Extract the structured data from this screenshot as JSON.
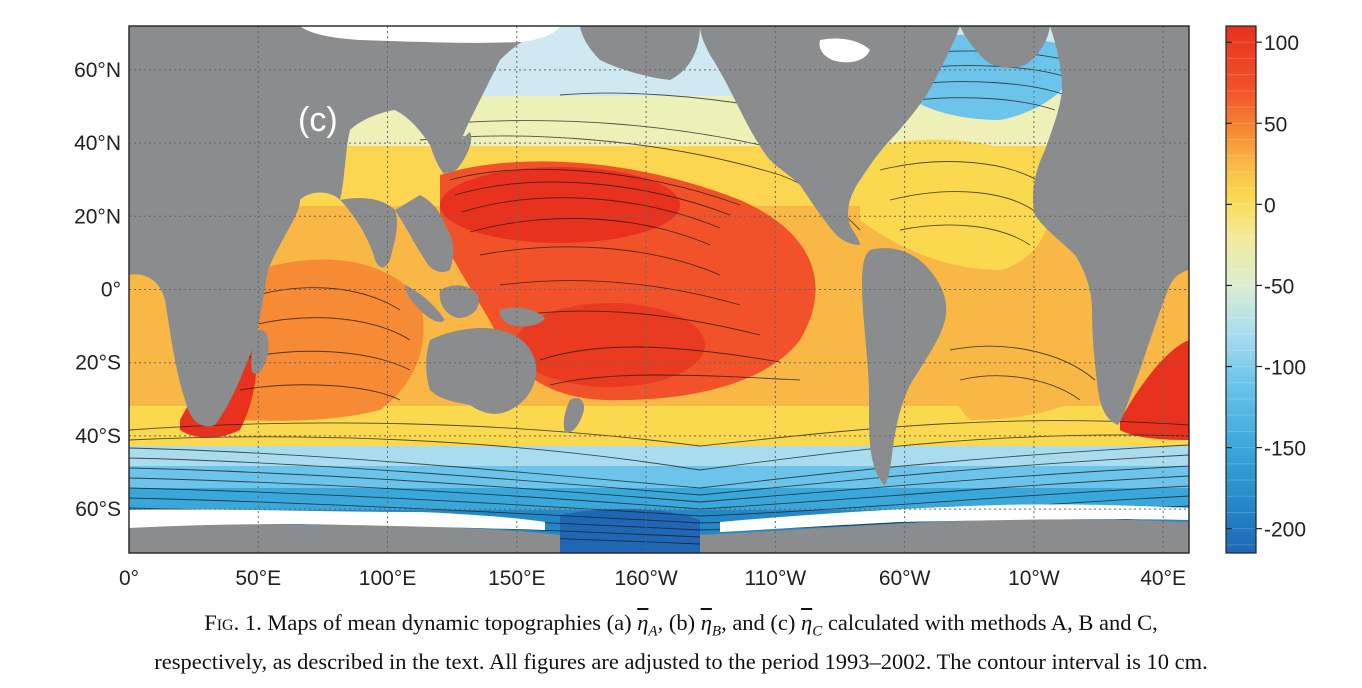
{
  "panel_label": "(c)",
  "lat_labels": [
    "60°N",
    "40°N",
    "20°N",
    "0°",
    "20°S",
    "40°S",
    "60°S"
  ],
  "lat_values": [
    60,
    40,
    20,
    0,
    -20,
    -40,
    -60
  ],
  "lon_labels": [
    "0°",
    "50°E",
    "100°E",
    "150°E",
    "160°W",
    "110°W",
    "60°W",
    "10°W",
    "40°E"
  ],
  "lon_values": [
    0,
    50,
    100,
    150,
    200,
    250,
    300,
    350,
    400
  ],
  "map_extent": {
    "lon": [
      0,
      410
    ],
    "lat": [
      -72,
      72
    ]
  },
  "colorbar": {
    "ticks": [
      "100",
      "50",
      "0",
      "-50",
      "-100",
      "-150",
      "-200"
    ],
    "tick_values": [
      100,
      50,
      0,
      -50,
      -100,
      -150,
      -200
    ],
    "range": [
      -215,
      110
    ],
    "unit": "cm",
    "stops": [
      {
        "v": 110,
        "c": "#e8321e"
      },
      {
        "v": 70,
        "c": "#f2522a"
      },
      {
        "v": 45,
        "c": "#f68a35"
      },
      {
        "v": 25,
        "c": "#f9b845"
      },
      {
        "v": 5,
        "c": "#fbd94f"
      },
      {
        "v": -20,
        "c": "#f3ea9a"
      },
      {
        "v": -50,
        "c": "#dbeed2"
      },
      {
        "v": -80,
        "c": "#a9dcef"
      },
      {
        "v": -110,
        "c": "#6cc4ea"
      },
      {
        "v": -150,
        "c": "#3aa7db"
      },
      {
        "v": -185,
        "c": "#2488c8"
      },
      {
        "v": -215,
        "c": "#1f66b5"
      }
    ]
  },
  "colors": {
    "land": "#8a8c8e",
    "ice": "#ffffff",
    "grid": "#666666",
    "contour": "#1a1a1a"
  },
  "caption": {
    "fig": "Fig. 1.",
    "part1": " Maps of mean dynamic topographies (a) ",
    "sub_a": "A",
    "part2": ", (b) ",
    "sub_b": "B",
    "part3": ", and (c) ",
    "sub_c": "C",
    "part4": " calculated with methods A, B and C,",
    "line2": "respectively, as described in the text. All figures are adjusted to the period 1993–2002. The contour interval is 10 cm.",
    "eta": "η"
  }
}
